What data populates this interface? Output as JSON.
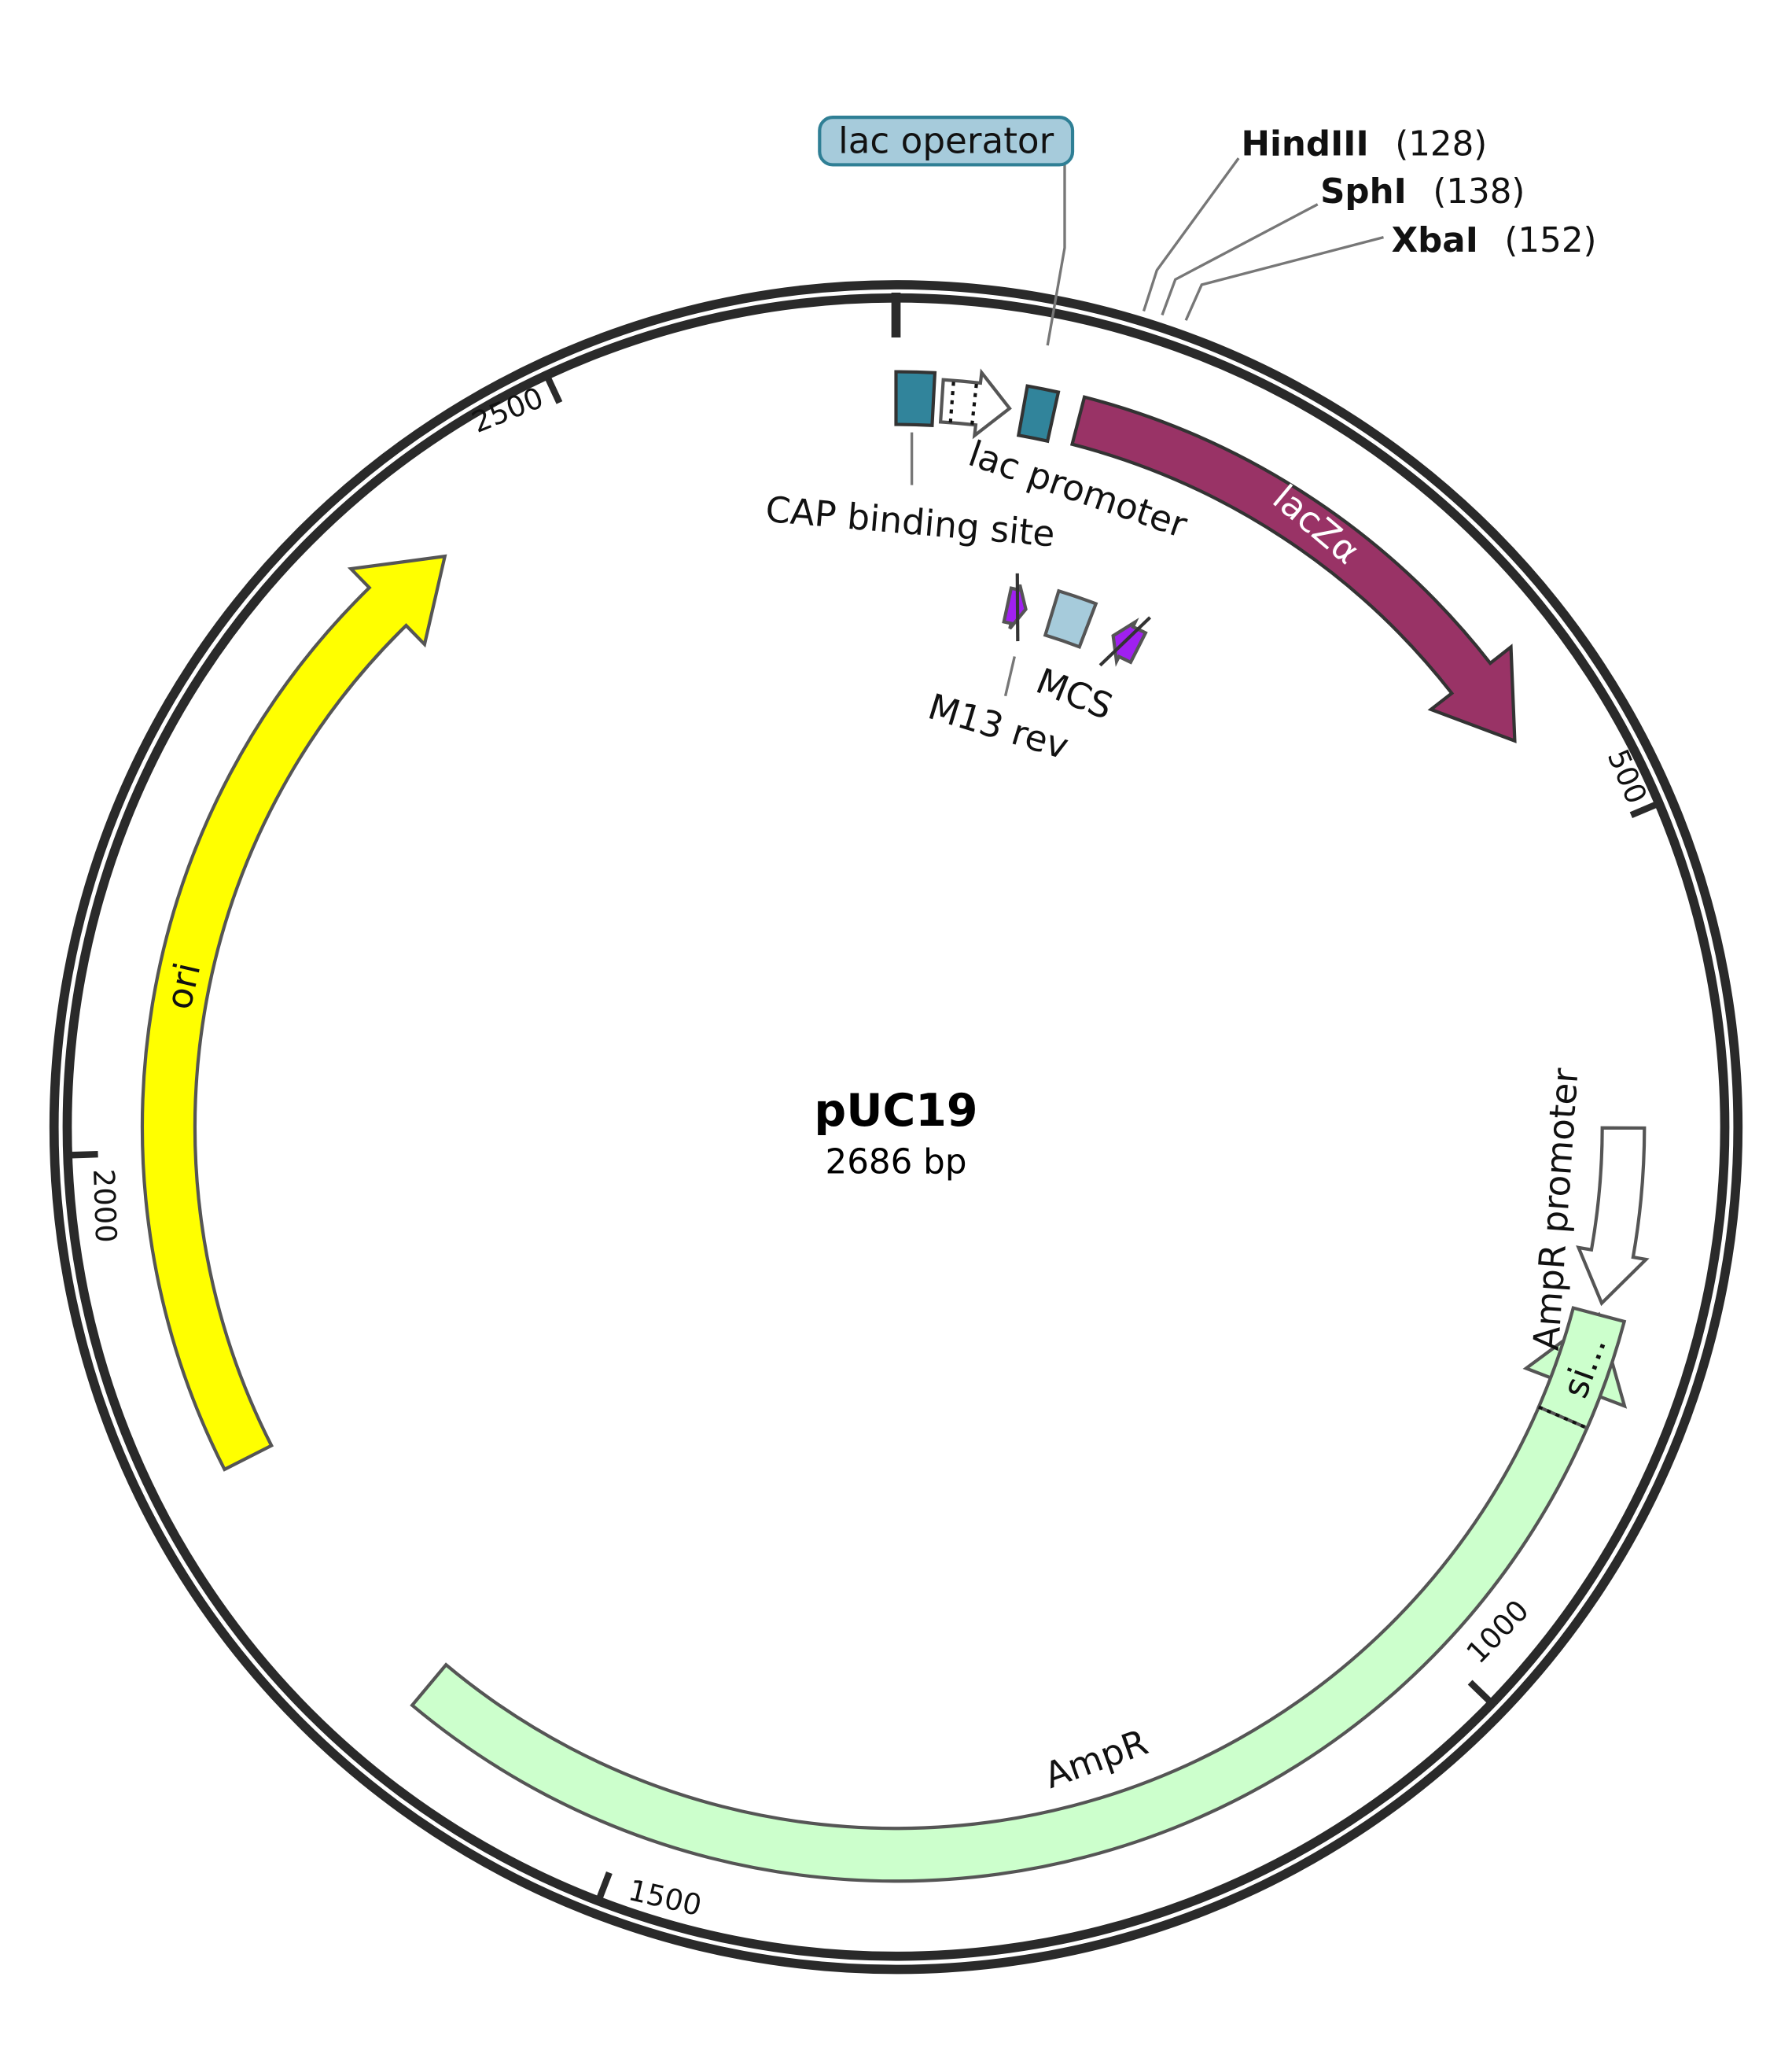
{
  "plasmid": {
    "name": "pUC19",
    "length_label": "2686 bp",
    "length_bp": 2686
  },
  "ticks": [
    {
      "bp": 500,
      "label": "500"
    },
    {
      "bp": 1000,
      "label": "1000"
    },
    {
      "bp": 1500,
      "label": "1500"
    },
    {
      "bp": 2000,
      "label": "2000"
    },
    {
      "bp": 2500,
      "label": "2500"
    }
  ],
  "features": [
    {
      "id": "cap",
      "label": "CAP binding site",
      "start": 0,
      "end": 22,
      "direction": "none",
      "color": "#31849b"
    },
    {
      "id": "lacprom",
      "label": "lac promoter",
      "start": 27,
      "end": 67,
      "direction": "forward",
      "color": "#ffffff"
    },
    {
      "id": "lacop",
      "label": "lac operator",
      "start": 75,
      "end": 93,
      "direction": "none",
      "color": "#31849b"
    },
    {
      "id": "laczalpha",
      "label": "lacZα",
      "start": 108,
      "end": 433,
      "direction": "forward",
      "color": "#993366"
    },
    {
      "id": "m13rev",
      "label": "M13 rev",
      "start": 90,
      "end": 105,
      "direction": "forward",
      "color": "#a020f0"
    },
    {
      "id": "mcs",
      "label": "MCS",
      "start": 126,
      "end": 156,
      "direction": "none",
      "color": "#a6cbdb"
    },
    {
      "id": "m13fwd",
      "label": "",
      "start": 178,
      "end": 200,
      "direction": "reverse",
      "color": "#a020f0"
    },
    {
      "id": "ampprom",
      "label": "AmpR promoter",
      "start": 672,
      "end": 776,
      "direction": "forward",
      "color": "#ffffff"
    },
    {
      "id": "ampr",
      "label": "AmpR",
      "start": 783,
      "end": 1641,
      "direction": "reverse",
      "color": "#ccffcc"
    },
    {
      "id": "sig",
      "label": "si...",
      "start": 783,
      "end": 847,
      "direction": "none",
      "color": "#ccffcc"
    },
    {
      "id": "ori",
      "label": "ori",
      "start": 1813,
      "end": 2400,
      "direction": "forward",
      "color": "#ffff00"
    }
  ],
  "sites": [
    {
      "name": "HindIII",
      "pos_label": "(128)",
      "bp": 128
    },
    {
      "name": "SphI",
      "pos_label": "(138)",
      "bp": 138
    },
    {
      "name": "XbaI",
      "pos_label": "(152)",
      "bp": 152
    }
  ]
}
